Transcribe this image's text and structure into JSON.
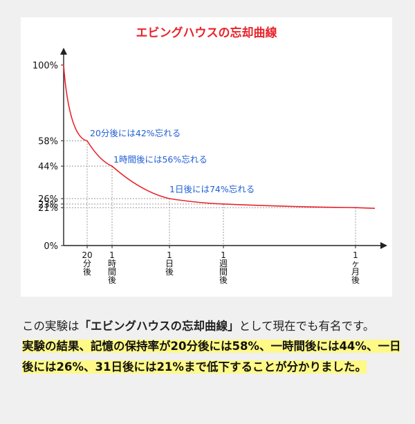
{
  "chart_data": {
    "type": "line",
    "title": "エビングハウスの忘却曲線",
    "x_ticks": [
      {
        "label": "20\n分\n後",
        "minutes": 20
      },
      {
        "label": "1\n時\n間\n後",
        "minutes": 60
      },
      {
        "label": "1\n日\n後",
        "minutes": 1440
      },
      {
        "label": "1\n週\n間\n後",
        "minutes": 10080
      },
      {
        "label": "1\nヶ\n月\n後",
        "minutes": 44640
      }
    ],
    "y_ticks": [
      "100%",
      "58%",
      "44%",
      "26%",
      "23%",
      "21%",
      "0%"
    ],
    "series": [
      {
        "color": "#e8232a",
        "points": [
          {
            "time": "0",
            "retention": 100
          },
          {
            "time": "20分後",
            "retention": 58
          },
          {
            "time": "1時間後",
            "retention": 44
          },
          {
            "time": "1日後",
            "retention": 26
          },
          {
            "time": "1週間後",
            "retention": 23
          },
          {
            "time": "1ヶ月後",
            "retention": 21
          }
        ]
      }
    ],
    "annotations": [
      "20分後には42%忘れる",
      "1時間後には56%忘れる",
      "1日後には74%忘れる"
    ],
    "grid": "dotted guides at data points",
    "colors": {
      "curve": "#e8232a",
      "annotation": "#1f5fd6",
      "axis": "#222222"
    }
  },
  "text": {
    "para1_pre": "この実験は",
    "para1_bold": "「エビングハウスの忘却曲線」",
    "para1_post": "として現在でも有名です。",
    "highlight": "実験の結果、記憶の保持率が20分後には58%、一時間後には44%、一日後には26%、31日後には21%まで低下することが分かりました。"
  }
}
